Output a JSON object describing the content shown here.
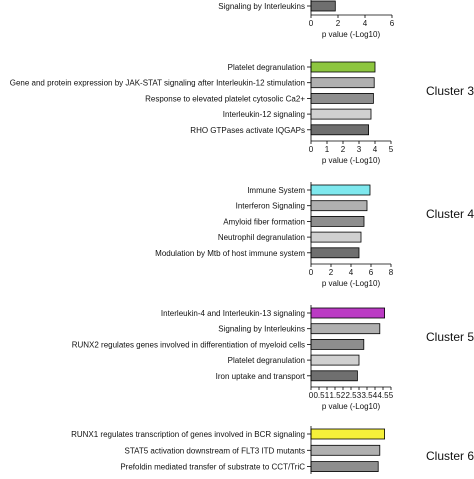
{
  "chart_data": [
    {
      "type": "bar",
      "orientation": "horizontal",
      "cluster_label": "",
      "xlabel": "p value (-Log10)",
      "xlim": [
        0,
        6
      ],
      "xticks": [
        "0",
        "2",
        "4",
        "6"
      ],
      "bars": [
        {
          "label": "Signaling by Interleukins",
          "value": 1.8,
          "color": "#6f6f6f"
        }
      ]
    },
    {
      "type": "bar",
      "orientation": "horizontal",
      "cluster_label": "Cluster 3",
      "xlabel": "p value (-Log10)",
      "xlim": [
        0,
        5
      ],
      "xticks": [
        "0",
        "1",
        "2",
        "3",
        "4",
        "5"
      ],
      "bars": [
        {
          "label": "Platelet degranulation",
          "value": 4.0,
          "color": "#8dc63f"
        },
        {
          "label": "Gene and protein expression by JAK-STAT signaling after Interleukin-12 stimulation",
          "value": 3.95,
          "color": "#b0b0b0"
        },
        {
          "label": "Response to elevated platelet cytosolic Ca2+",
          "value": 3.9,
          "color": "#8e8e8e"
        },
        {
          "label": "Interleukin-12 signaling",
          "value": 3.75,
          "color": "#d0d0d0"
        },
        {
          "label": "RHO GTPases activate IQGAPs",
          "value": 3.6,
          "color": "#6f6f6f"
        }
      ]
    },
    {
      "type": "bar",
      "orientation": "horizontal",
      "cluster_label": "Cluster 4",
      "xlabel": "p value (-Log10)",
      "xlim": [
        0,
        8
      ],
      "xticks": [
        "0",
        "2",
        "4",
        "6",
        "8"
      ],
      "bars": [
        {
          "label": "Immune System",
          "value": 5.9,
          "color": "#7ee8ee"
        },
        {
          "label": "Interferon Signaling",
          "value": 5.6,
          "color": "#b0b0b0"
        },
        {
          "label": "Amyloid fiber formation",
          "value": 5.3,
          "color": "#8e8e8e"
        },
        {
          "label": "Neutrophil degranulation",
          "value": 5.0,
          "color": "#d0d0d0"
        },
        {
          "label": "Modulation by Mtb of host immune system",
          "value": 4.8,
          "color": "#6f6f6f"
        }
      ]
    },
    {
      "type": "bar",
      "orientation": "horizontal",
      "cluster_label": "Cluster 5",
      "xlabel": "p value (-Log10)",
      "xlim": [
        0,
        5
      ],
      "xticks": [
        "0",
        "0.5",
        "1",
        "1.5",
        "2",
        "2.5",
        "3",
        "3.5",
        "4",
        "4.5",
        "5"
      ],
      "bars": [
        {
          "label": "Interleukin-4 and Interleukin-13 signaling",
          "value": 4.6,
          "color": "#bb3bc4"
        },
        {
          "label": "Signaling by Interleukins",
          "value": 4.3,
          "color": "#b0b0b0"
        },
        {
          "label": "RUNX2 regulates genes involved in differentiation of myeloid cells",
          "value": 3.3,
          "color": "#8e8e8e"
        },
        {
          "label": "Platelet degranulation",
          "value": 3.0,
          "color": "#d0d0d0"
        },
        {
          "label": "Iron uptake and transport",
          "value": 2.9,
          "color": "#6f6f6f"
        }
      ]
    },
    {
      "type": "bar",
      "orientation": "horizontal",
      "cluster_label": "Cluster 6",
      "xlabel": "",
      "xlim": [
        0,
        5
      ],
      "xticks": [],
      "bars": [
        {
          "label": "RUNX1 regulates transcription of genes involved in BCR signaling",
          "value": 4.6,
          "color": "#f5f03a"
        },
        {
          "label": "STAT5 activation downstream of FLT3 ITD mutants",
          "value": 4.3,
          "color": "#b0b0b0"
        },
        {
          "label": "Prefoldin mediated transfer of substrate to CCT/TriC",
          "value": 4.2,
          "color": "#8e8e8e"
        }
      ]
    }
  ]
}
